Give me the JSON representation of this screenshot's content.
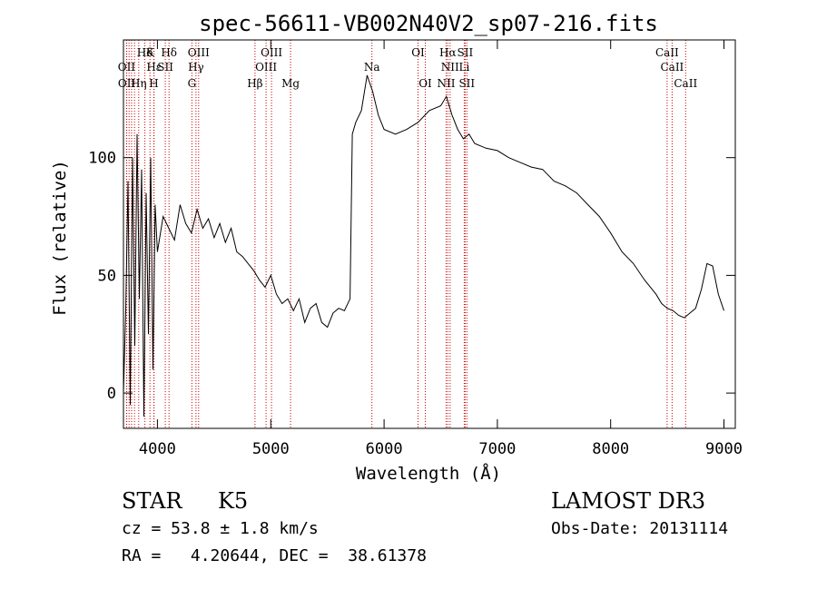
{
  "chart_data": {
    "type": "line",
    "title": "spec-56611-VB002N40V2_sp07-216.fits",
    "xlabel": "Wavelength (Å)",
    "ylabel": "Flux (relative)",
    "xlim": [
      3700,
      9100
    ],
    "ylim": [
      -15,
      150
    ],
    "x_ticks": [
      4000,
      5000,
      6000,
      7000,
      8000,
      9000
    ],
    "x_tick_labels": [
      "4000",
      "5000",
      "6000",
      "7000",
      "8000",
      "9000"
    ],
    "y_ticks": [
      0,
      50,
      100
    ],
    "y_tick_labels": [
      "0",
      "50",
      "100"
    ],
    "series": [
      {
        "name": "spectrum",
        "x": [
          3700,
          3720,
          3740,
          3760,
          3780,
          3800,
          3820,
          3840,
          3860,
          3880,
          3900,
          3920,
          3940,
          3960,
          3980,
          4000,
          4050,
          4100,
          4150,
          4200,
          4250,
          4300,
          4350,
          4400,
          4450,
          4500,
          4550,
          4600,
          4650,
          4700,
          4750,
          4800,
          4850,
          4900,
          4950,
          5000,
          5050,
          5100,
          5150,
          5200,
          5250,
          5300,
          5350,
          5400,
          5450,
          5500,
          5550,
          5600,
          5650,
          5700,
          5720,
          5750,
          5800,
          5850,
          5900,
          5950,
          6000,
          6100,
          6200,
          6300,
          6400,
          6500,
          6550,
          6600,
          6650,
          6700,
          6750,
          6800,
          6900,
          7000,
          7100,
          7200,
          7300,
          7400,
          7500,
          7600,
          7700,
          7800,
          7900,
          8000,
          8100,
          8200,
          8300,
          8400,
          8450,
          8500,
          8550,
          8600,
          8650,
          8700,
          8750,
          8800,
          8850,
          8900,
          8950,
          9000
        ],
        "y": [
          0,
          35,
          90,
          -5,
          100,
          20,
          110,
          40,
          95,
          -10,
          85,
          25,
          100,
          10,
          80,
          60,
          75,
          70,
          65,
          80,
          72,
          68,
          78,
          70,
          74,
          66,
          72,
          64,
          70,
          60,
          58,
          55,
          52,
          48,
          45,
          50,
          42,
          38,
          40,
          35,
          40,
          30,
          36,
          38,
          30,
          28,
          34,
          36,
          35,
          40,
          110,
          115,
          120,
          135,
          128,
          118,
          112,
          110,
          112,
          115,
          120,
          122,
          126,
          118,
          112,
          108,
          110,
          106,
          104,
          103,
          100,
          98,
          96,
          95,
          90,
          88,
          85,
          80,
          75,
          68,
          60,
          55,
          48,
          42,
          38,
          36,
          35,
          33,
          32,
          34,
          36,
          44,
          55,
          54,
          42,
          35
        ]
      }
    ],
    "line_labels": [
      {
        "text": "Hδ",
        "x": 3889,
        "row": 1
      },
      {
        "text": "K",
        "x": 3934,
        "row": 1
      },
      {
        "text": "Hδ",
        "x": 4102,
        "row": 1
      },
      {
        "text": "OIII",
        "x": 4363,
        "row": 1
      },
      {
        "text": "OIII",
        "x": 5007,
        "row": 1
      },
      {
        "text": "OI",
        "x": 6300,
        "row": 1
      },
      {
        "text": "Hα",
        "x": 6563,
        "row": 1
      },
      {
        "text": "SII",
        "x": 6716,
        "row": 1
      },
      {
        "text": "CaII",
        "x": 8498,
        "row": 1
      },
      {
        "text": "OII",
        "x": 3727,
        "row": 2
      },
      {
        "text": "Hε",
        "x": 3970,
        "row": 2
      },
      {
        "text": "SII",
        "x": 4069,
        "row": 2
      },
      {
        "text": "Hγ",
        "x": 4340,
        "row": 2
      },
      {
        "text": "OIII",
        "x": 4959,
        "row": 2
      },
      {
        "text": "Na",
        "x": 5893,
        "row": 2
      },
      {
        "text": "NII",
        "x": 6583,
        "row": 2
      },
      {
        "text": "Li",
        "x": 6708,
        "row": 2
      },
      {
        "text": "CaII",
        "x": 8542,
        "row": 2
      },
      {
        "text": "OII",
        "x": 3729,
        "row": 3
      },
      {
        "text": "Hη",
        "x": 3835,
        "row": 3
      },
      {
        "text": "H",
        "x": 3968,
        "row": 3
      },
      {
        "text": "G",
        "x": 4304,
        "row": 3
      },
      {
        "text": "Hβ",
        "x": 4861,
        "row": 3
      },
      {
        "text": "Mg",
        "x": 5175,
        "row": 3
      },
      {
        "text": "OI",
        "x": 6364,
        "row": 3
      },
      {
        "text": "NII",
        "x": 6548,
        "row": 3
      },
      {
        "text": "SII",
        "x": 6731,
        "row": 3
      },
      {
        "text": "CaII",
        "x": 8662,
        "row": 3
      }
    ],
    "marker_lines": [
      3727,
      3729,
      3750,
      3771,
      3798,
      3835,
      3889,
      3934,
      3968,
      3970,
      4069,
      4102,
      4304,
      4340,
      4363,
      4861,
      4959,
      5007,
      5175,
      5893,
      6300,
      6364,
      6548,
      6563,
      6583,
      6708,
      6716,
      6731,
      8498,
      8542,
      8662
    ],
    "marker_color": "#cc0000",
    "line_color": "#000000"
  },
  "footer": {
    "object_class": "STAR",
    "subclass": "K5",
    "survey": "LAMOST DR3",
    "cz": "cz = 53.8 ± 1.8 km/s",
    "obs_date": "Obs-Date: 20131114",
    "coords": "RA =   4.20644, DEC =  38.61378"
  }
}
